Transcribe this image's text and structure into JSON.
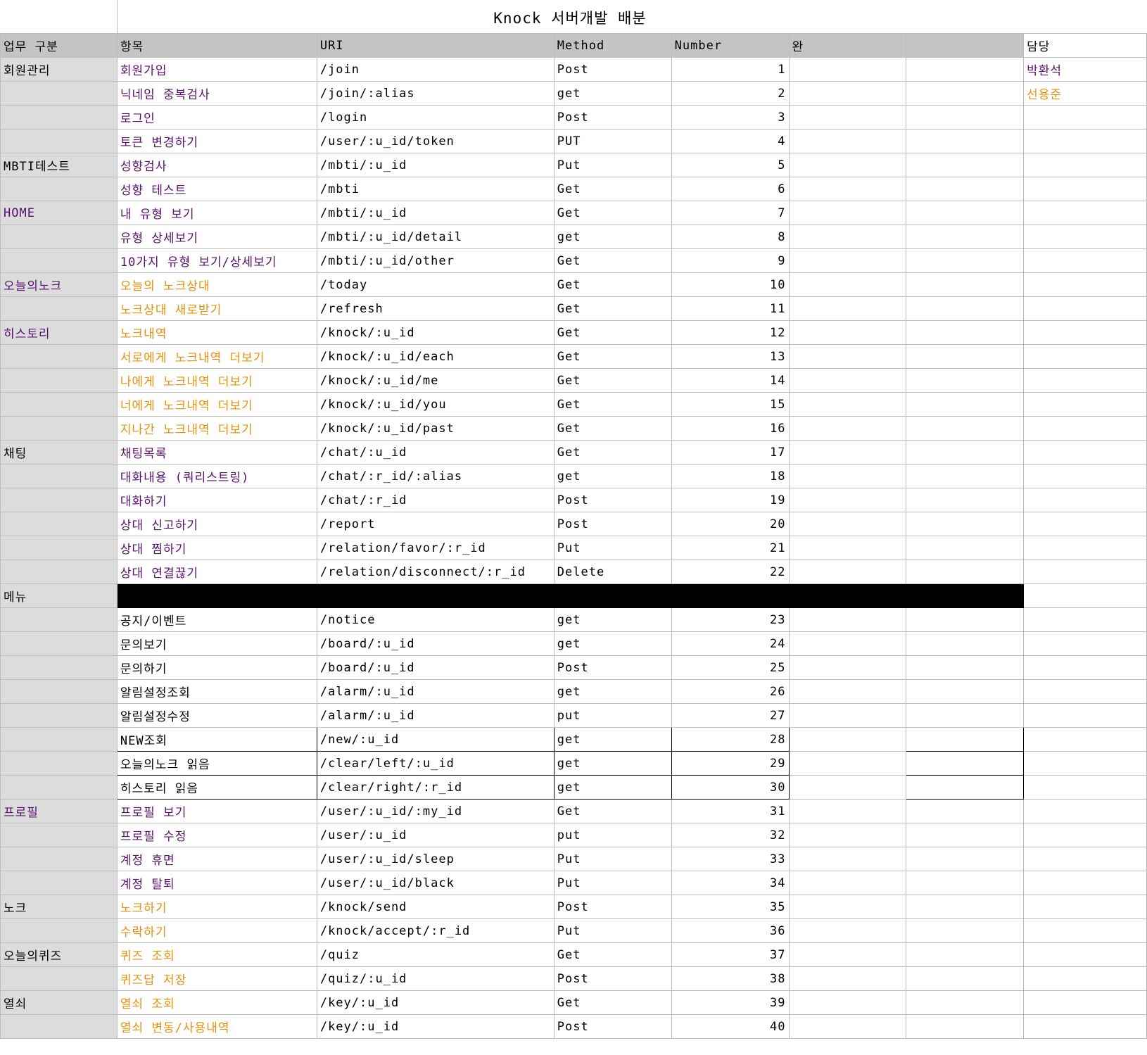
{
  "title": "Knock 서버개발 배분",
  "headers": {
    "category": "업무 구분",
    "item": "항목",
    "uri": "URI",
    "method": "Method",
    "number": "Number",
    "done": "완",
    "extra": "",
    "owner": "담당"
  },
  "colors": {
    "purple": "#5a1070",
    "orange": "#e8900a",
    "header_bg": "#c4c4c4",
    "category_bg": "#dcdcdc"
  },
  "rows": [
    {
      "cat": "회원관리",
      "item": "회원가입",
      "uri": "/join",
      "method": "Post",
      "num": "1",
      "owner": "박환석",
      "color": "purple",
      "owner_color": "purple"
    },
    {
      "cat": "",
      "item": "닉네임 중복검사",
      "uri": "/join/:alias",
      "method": "get",
      "num": "2",
      "owner": "선용준",
      "color": "purple",
      "owner_color": "orange"
    },
    {
      "cat": "",
      "item": "로그인",
      "uri": "/login",
      "method": "Post",
      "num": "3",
      "owner": "",
      "color": "purple"
    },
    {
      "cat": "",
      "item": "토큰 변경하기",
      "uri": "/user/:u_id/token",
      "method": "PUT",
      "num": "4",
      "owner": "",
      "color": "purple"
    },
    {
      "cat": "MBTI테스트",
      "item": "성향검사",
      "uri": "/mbti/:u_id",
      "method": "Put",
      "num": "5",
      "owner": "",
      "color": "purple"
    },
    {
      "cat": "",
      "item": "성향 테스트",
      "uri": "/mbti",
      "method": "Get",
      "num": "6",
      "owner": "",
      "color": "purple"
    },
    {
      "cat": "HOME",
      "item": "내 유형 보기",
      "uri": "/mbti/:u_id",
      "method": "Get",
      "num": "7",
      "owner": "",
      "color": "purple",
      "cat_color": "purple"
    },
    {
      "cat": "",
      "item": "유형 상세보기",
      "uri": "/mbti/:u_id/detail",
      "method": "get",
      "num": "8",
      "owner": "",
      "color": "purple"
    },
    {
      "cat": "",
      "item": "10가지 유형 보기/상세보기",
      "uri": "/mbti/:u_id/other",
      "method": "Get",
      "num": "9",
      "owner": "",
      "color": "purple"
    },
    {
      "cat": "오늘의노크",
      "item": "오늘의 노크상대",
      "uri": "/today",
      "method": "Get",
      "num": "10",
      "owner": "",
      "color": "orange",
      "cat_color": "purple"
    },
    {
      "cat": "",
      "item": "노크상대 새로받기",
      "uri": "/refresh",
      "method": "Get",
      "num": "11",
      "owner": "",
      "color": "orange"
    },
    {
      "cat": "히스토리",
      "item": "노크내역",
      "uri": "/knock/:u_id",
      "method": "Get",
      "num": "12",
      "owner": "",
      "color": "orange",
      "cat_color": "purple"
    },
    {
      "cat": "",
      "item": "서로에게 노크내역 더보기",
      "uri": "/knock/:u_id/each",
      "method": "Get",
      "num": "13",
      "owner": "",
      "color": "orange"
    },
    {
      "cat": "",
      "item": "나에게 노크내역 더보기",
      "uri": "/knock/:u_id/me",
      "method": "Get",
      "num": "14",
      "owner": "",
      "color": "orange"
    },
    {
      "cat": "",
      "item": "너에게 노크내역 더보기",
      "uri": "/knock/:u_id/you",
      "method": "Get",
      "num": "15",
      "owner": "",
      "color": "orange"
    },
    {
      "cat": "",
      "item": "지나간 노크내역 더보기",
      "uri": "/knock/:u_id/past",
      "method": "Get",
      "num": "16",
      "owner": "",
      "color": "orange"
    },
    {
      "cat": "채팅",
      "item": "채팅목록",
      "uri": "/chat/:u_id",
      "method": "Get",
      "num": "17",
      "owner": "",
      "color": "purple"
    },
    {
      "cat": "",
      "item": "대화내용 (쿼리스트링)",
      "uri": "/chat/:r_id/:alias",
      "method": "get",
      "num": "18",
      "owner": "",
      "color": "purple"
    },
    {
      "cat": "",
      "item": "대화하기",
      "uri": "/chat/:r_id",
      "method": "Post",
      "num": "19",
      "owner": "",
      "color": "purple"
    },
    {
      "cat": "",
      "item": "상대 신고하기",
      "uri": "/report",
      "method": "Post",
      "num": "20",
      "owner": "",
      "color": "purple"
    },
    {
      "cat": "",
      "item": "상대 찜하기",
      "uri": "/relation/favor/:r_id",
      "method": "Put",
      "num": "21",
      "owner": "",
      "color": "purple"
    },
    {
      "cat": "",
      "item": "상대 연결끊기",
      "uri": "/relation/disconnect/:r_id",
      "method": "Delete",
      "num": "22",
      "owner": "",
      "color": "purple"
    },
    {
      "cat": "메뉴",
      "item": "",
      "uri": "",
      "method": "",
      "num": "",
      "owner": "",
      "color": "black",
      "blackbar": true
    },
    {
      "cat": "",
      "item": "공지/이벤트",
      "uri": "/notice",
      "method": "get",
      "num": "23",
      "owner": "",
      "color": "black"
    },
    {
      "cat": "",
      "item": "문의보기",
      "uri": "/board/:u_id",
      "method": "get",
      "num": "24",
      "owner": "",
      "color": "black"
    },
    {
      "cat": "",
      "item": "문의하기",
      "uri": "/board/:u_id",
      "method": "Post",
      "num": "25",
      "owner": "",
      "color": "black"
    },
    {
      "cat": "",
      "item": "알림설정조회",
      "uri": "/alarm/:u_id",
      "method": "get",
      "num": "26",
      "owner": "",
      "color": "black"
    },
    {
      "cat": "",
      "item": "알림설정수정",
      "uri": "/alarm/:u_id",
      "method": "put",
      "num": "27",
      "owner": "",
      "color": "black"
    },
    {
      "cat": "",
      "item": "NEW조회",
      "uri": "/new/:u_id",
      "method": "get",
      "num": "28",
      "owner": "",
      "color": "black",
      "boxed": true
    },
    {
      "cat": "",
      "item": "오늘의노크 읽음",
      "uri": "/clear/left/:u_id",
      "method": "get",
      "num": "29",
      "owner": "",
      "color": "black",
      "boxed": true
    },
    {
      "cat": "",
      "item": "히스토리 읽음",
      "uri": "/clear/right/:r_id",
      "method": "get",
      "num": "30",
      "owner": "",
      "color": "black",
      "boxed": true
    },
    {
      "cat": "프로필",
      "item": "프로필 보기",
      "uri": "/user/:u_id/:my_id",
      "method": "Get",
      "num": "31",
      "owner": "",
      "color": "purple",
      "cat_color": "purple"
    },
    {
      "cat": "",
      "item": "프로필 수정",
      "uri": "/user/:u_id",
      "method": "put",
      "num": "32",
      "owner": "",
      "color": "purple"
    },
    {
      "cat": "",
      "item": "계정 휴면",
      "uri": "/user/:u_id/sleep",
      "method": "Put",
      "num": "33",
      "owner": "",
      "color": "purple"
    },
    {
      "cat": "",
      "item": "계정 탈퇴",
      "uri": "/user/:u_id/black",
      "method": "Put",
      "num": "34",
      "owner": "",
      "color": "purple"
    },
    {
      "cat": "노크",
      "item": "노크하기",
      "uri": "/knock/send",
      "method": "Post",
      "num": "35",
      "owner": "",
      "color": "orange"
    },
    {
      "cat": "",
      "item": "수락하기",
      "uri": "/knock/accept/:r_id",
      "method": "Put",
      "num": "36",
      "owner": "",
      "color": "orange"
    },
    {
      "cat": "오늘의퀴즈",
      "item": "퀴즈 조회",
      "uri": "/quiz",
      "method": "Get",
      "num": "37",
      "owner": "",
      "color": "orange"
    },
    {
      "cat": "",
      "item": "퀴즈답 저장",
      "uri": "/quiz/:u_id",
      "method": "Post",
      "num": "38",
      "owner": "",
      "color": "orange"
    },
    {
      "cat": "열쇠",
      "item": "열쇠 조회",
      "uri": "/key/:u_id",
      "method": "Get",
      "num": "39",
      "owner": "",
      "color": "orange"
    },
    {
      "cat": "",
      "item": "열쇠 변동/사용내역",
      "uri": "/key/:u_id",
      "method": "Post",
      "num": "40",
      "owner": "",
      "color": "orange"
    }
  ]
}
